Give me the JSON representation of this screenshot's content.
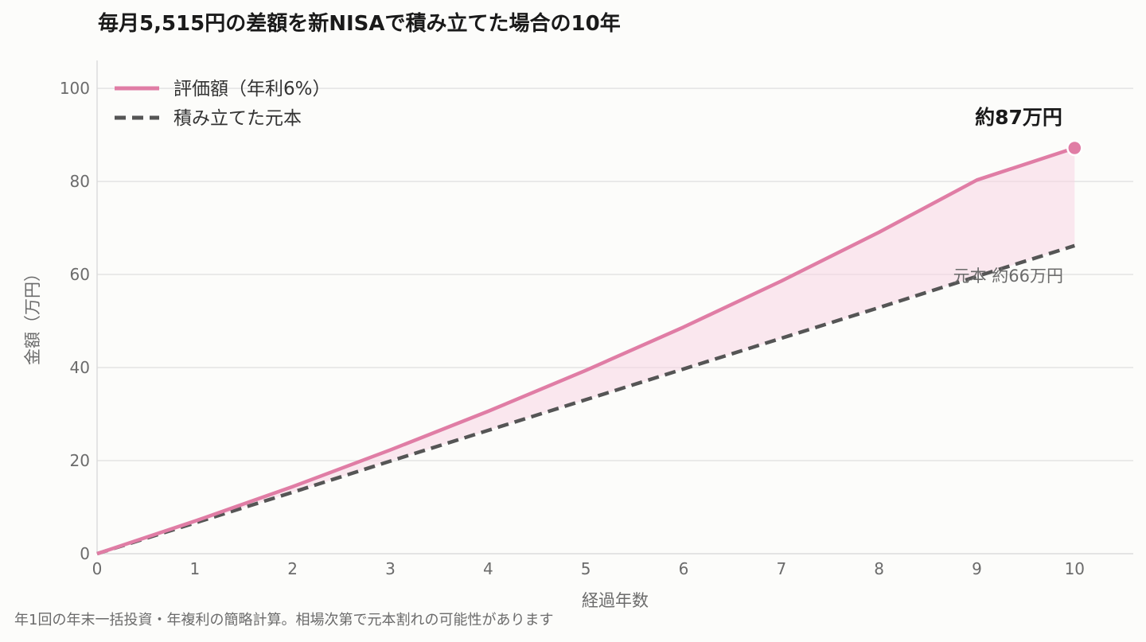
{
  "chart_data": {
    "type": "line",
    "title": "毎月5,515円の差額を新NISAで積み立てた場合の10年",
    "xlabel": "経過年数",
    "ylabel": "金額（万円）",
    "x": [
      0,
      1,
      2,
      3,
      4,
      5,
      6,
      7,
      8,
      9,
      10
    ],
    "xlim": [
      0,
      10.6
    ],
    "ylim": [
      0,
      106
    ],
    "yticks": [
      0,
      20,
      40,
      60,
      80,
      100
    ],
    "grid": "horizontal",
    "legend_position": "top-left",
    "series": [
      {
        "name": "評価額（年利6%）",
        "color": "#e07da5",
        "style": "solid",
        "values": [
          0,
          7.0,
          14.4,
          22.3,
          30.6,
          39.4,
          48.7,
          58.6,
          69.1,
          80.3,
          87.2
        ]
      },
      {
        "name": "積み立てた元本",
        "color": "#555555",
        "style": "dashed",
        "values": [
          0,
          6.6,
          13.2,
          19.9,
          26.5,
          33.1,
          39.7,
          46.3,
          52.9,
          59.6,
          66.2
        ]
      }
    ],
    "fill_between": {
      "color": "#f7d6e4"
    },
    "annotations": {
      "final_value_label": "約87万円",
      "principal_label": "元本 約66万円"
    },
    "footnote": "年1回の年末一括投資・年複利の簡略計算。相場次第で元本割れの可能性があります"
  }
}
